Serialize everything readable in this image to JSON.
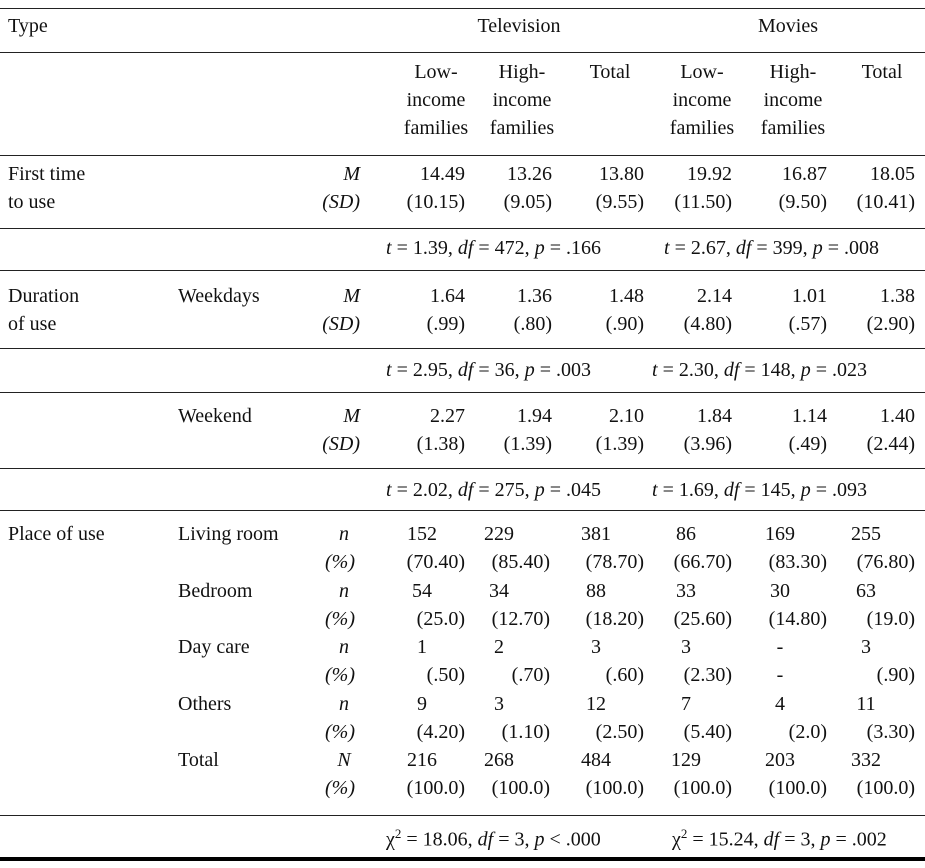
{
  "table": {
    "header": {
      "type_label": "Type",
      "television": "Television",
      "movies": "Movies",
      "columns": [
        [
          "Low-",
          "income",
          "families"
        ],
        [
          "High-",
          "income",
          "families"
        ],
        [
          "Total"
        ],
        [
          "Low-",
          "income",
          "families"
        ],
        [
          "High-",
          "income",
          "families"
        ],
        [
          "Total"
        ]
      ]
    },
    "first_time": {
      "label": [
        "First time",
        "to use"
      ],
      "stats": [
        "M",
        "(SD)"
      ],
      "rows": [
        [
          "14.49",
          "13.26",
          "13.80",
          "19.92",
          "16.87",
          "18.05"
        ],
        [
          "(10.15)",
          "(9.05)",
          "(9.55)",
          "(11.50)",
          "(9.50)",
          "(10.41)"
        ]
      ],
      "test_tv": "t = 1.39, df = 472, p = .166",
      "test_movies": "t = 2.67, df = 399, p = .008"
    },
    "duration": {
      "label": [
        "Duration",
        "of use"
      ],
      "weekdays": {
        "label": "Weekdays",
        "stats": [
          "M",
          "(SD)"
        ],
        "rows": [
          [
            "1.64",
            "1.36",
            "1.48",
            "2.14",
            "1.01",
            "1.38"
          ],
          [
            "(.99)",
            "(.80)",
            "(.90)",
            "(4.80)",
            "(.57)",
            "(2.90)"
          ]
        ],
        "test_tv": "t = 2.95, df = 36, p = .003",
        "test_movies": "t = 2.30, df = 148, p = .023"
      },
      "weekend": {
        "label": "Weekend",
        "stats": [
          "M",
          "(SD)"
        ],
        "rows": [
          [
            "2.27",
            "1.94",
            "2.10",
            "1.84",
            "1.14",
            "1.40"
          ],
          [
            "(1.38)",
            "(1.39)",
            "(1.39)",
            "(3.96)",
            "(.49)",
            "(2.44)"
          ]
        ],
        "test_tv": "t = 2.02, df = 275, p = .045",
        "test_movies": "t = 1.69, df = 145, p = .093"
      }
    },
    "place": {
      "label": "Place of use",
      "groups": [
        {
          "label": "Living room",
          "stats": [
            "n",
            "(%)"
          ],
          "rows": [
            [
              "152",
              "229",
              "381",
              "86",
              "169",
              "255"
            ],
            [
              "(70.40)",
              "(85.40)",
              "(78.70)",
              "(66.70)",
              "(83.30)",
              "(76.80)"
            ]
          ]
        },
        {
          "label": "Bedroom",
          "stats": [
            "n",
            "(%)"
          ],
          "rows": [
            [
              "54",
              "34",
              "88",
              "33",
              "30",
              "63"
            ],
            [
              "(25.0)",
              "(12.70)",
              "(18.20)",
              "(25.60)",
              "(14.80)",
              "(19.0)"
            ]
          ]
        },
        {
          "label": "Day care",
          "stats": [
            "n",
            "(%)"
          ],
          "rows": [
            [
              "1",
              "2",
              "3",
              "3",
              "-",
              "3"
            ],
            [
              "(.50)",
              "(.70)",
              "(.60)",
              "(2.30)",
              "-",
              "(.90)"
            ]
          ]
        },
        {
          "label": "Others",
          "stats": [
            "n",
            "(%)"
          ],
          "rows": [
            [
              "9",
              "3",
              "12",
              "7",
              "4",
              "11"
            ],
            [
              "(4.20)",
              "(1.10)",
              "(2.50)",
              "(5.40)",
              "(2.0)",
              "(3.30)"
            ]
          ]
        },
        {
          "label": "Total",
          "stats": [
            "N",
            "(%)"
          ],
          "rows": [
            [
              "216",
              "268",
              "484",
              "129",
              "203",
              "332"
            ],
            [
              "(100.0)",
              "(100.0)",
              "(100.0)",
              "(100.0)",
              "(100.0)",
              "(100.0)"
            ]
          ]
        }
      ],
      "test_tv": "χ² = 18.06, df = 3, p < .000",
      "test_movies": "χ² = 15.24, df = 3, p = .002"
    }
  }
}
